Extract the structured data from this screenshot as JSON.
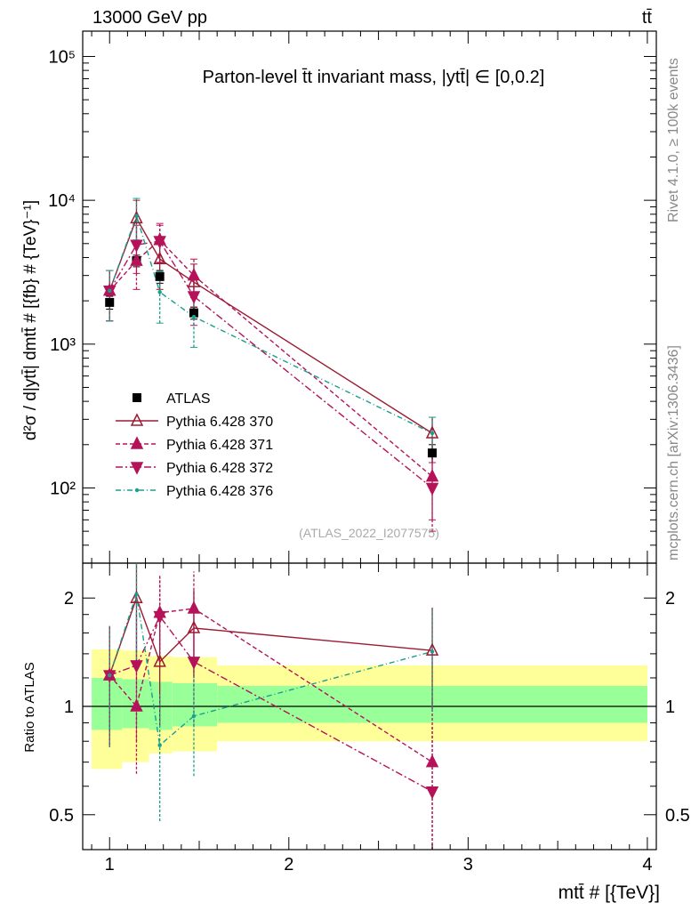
{
  "header": {
    "energy_label": "13000 GeV pp",
    "process_label": "tt̄",
    "side_rivet": "Rivet 4.1.0, ≥ 100k events",
    "side_mcplots": "mcplots.cern.ch [arXiv:1306.3436]"
  },
  "colors": {
    "atlas": "#000000",
    "p370": "#9b1b30",
    "p371": "#b5125a",
    "p372": "#b5125a",
    "p376": "#1a9f8f",
    "band_yellow": "#ffff99",
    "band_green": "#99ff99"
  },
  "chart_data": [
    {
      "type": "scatter",
      "title": "Parton-level t̄t invariant mass, |ytt̄| ∈ [0,0.2]",
      "xlabel": "mtt̄ # [{TeV}]",
      "ylabel": "d²σ / d|ytt̄| dmtt̄ # [{fb} # {TeV}⁻¹]",
      "yscale": "log",
      "xlim": [
        0.85,
        4.05
      ],
      "ylim": [
        30,
        150000
      ],
      "x_ticks": [
        "1",
        "2",
        "3",
        "4"
      ],
      "y_ticks": [
        "10²",
        "10³",
        "10⁴",
        "10⁵"
      ],
      "legend_position": "middle-left",
      "watermark": "(ATLAS_2022_I2077575)",
      "bin_edges": [
        0.9,
        1.07,
        1.22,
        1.35,
        1.6,
        4.0
      ],
      "series": [
        {
          "name": "ATLAS",
          "marker": "square",
          "x": [
            1.0,
            1.15,
            1.28,
            1.47,
            2.8
          ],
          "y": [
            1950,
            3800,
            2950,
            1650,
            175
          ],
          "yerr": [
            200,
            350,
            300,
            160,
            25
          ]
        },
        {
          "name": "Pythia 6.428 370",
          "marker": "triangle-up-open",
          "line": "solid",
          "x": [
            1.0,
            1.15,
            1.28,
            1.47,
            2.8
          ],
          "y": [
            2350,
            7500,
            3900,
            2700,
            240
          ],
          "yerr": [
            900,
            2500,
            1500,
            900,
            70
          ]
        },
        {
          "name": "Pythia 6.428 371",
          "marker": "triangle-up",
          "line": "dashed",
          "x": [
            1.0,
            1.15,
            1.28,
            1.47,
            2.8
          ],
          "y": [
            2350,
            3800,
            5300,
            3000,
            120
          ],
          "yerr": [
            900,
            1400,
            1600,
            900,
            60
          ]
        },
        {
          "name": "Pythia 6.428 372",
          "marker": "triangle-down",
          "line": "dashdot",
          "x": [
            1.0,
            1.15,
            1.28,
            1.47,
            2.8
          ],
          "y": [
            2350,
            4900,
            5200,
            2150,
            100
          ],
          "yerr": [
            900,
            1800,
            1500,
            800,
            50
          ]
        },
        {
          "name": "Pythia 6.428 376",
          "marker": "dot",
          "line": "dashdotted",
          "x": [
            1.0,
            1.15,
            1.28,
            1.47,
            2.8
          ],
          "y": [
            2350,
            7800,
            2300,
            1550,
            240
          ],
          "yerr": [
            900,
            2500,
            900,
            600,
            70
          ]
        }
      ]
    },
    {
      "type": "scatter",
      "title": "",
      "xlabel": "",
      "ylabel": "Ratio to ATLAS",
      "yscale": "log",
      "xlim": [
        0.85,
        4.05
      ],
      "ylim": [
        0.4,
        2.5
      ],
      "y_ticks": [
        "0.5",
        "1",
        "2"
      ],
      "reference": 1,
      "bands": {
        "bin_edges": [
          0.9,
          1.07,
          1.22,
          1.35,
          1.6,
          4.0
        ],
        "yellow_lo": [
          0.67,
          0.7,
          0.74,
          0.75,
          0.8
        ],
        "yellow_hi": [
          1.44,
          1.43,
          1.38,
          1.37,
          1.3
        ],
        "green_lo": [
          0.86,
          0.87,
          0.86,
          0.88,
          0.9
        ],
        "green_hi": [
          1.2,
          1.19,
          1.17,
          1.16,
          1.14
        ]
      },
      "series": [
        {
          "name": "Pythia 6.428 370",
          "x": [
            1.0,
            1.15,
            1.28,
            1.47,
            2.8
          ],
          "y": [
            1.22,
            2.0,
            1.33,
            1.65,
            1.43
          ],
          "err": [
            0.45,
            0.7,
            0.45,
            0.45,
            0.45
          ]
        },
        {
          "name": "Pythia 6.428 371",
          "x": [
            1.0,
            1.15,
            1.28,
            1.47,
            2.8
          ],
          "y": [
            1.22,
            1.0,
            1.82,
            1.87,
            0.7
          ],
          "err": [
            0.45,
            0.35,
            0.5,
            0.5,
            0.35
          ]
        },
        {
          "name": "Pythia 6.428 372",
          "x": [
            1.0,
            1.15,
            1.28,
            1.47,
            2.8
          ],
          "y": [
            1.22,
            1.3,
            1.78,
            1.33,
            0.58
          ],
          "err": [
            0.45,
            0.5,
            0.5,
            0.45,
            0.3
          ]
        },
        {
          "name": "Pythia 6.428 376",
          "x": [
            1.0,
            1.15,
            1.28,
            1.47,
            2.8
          ],
          "y": [
            1.22,
            2.05,
            0.78,
            0.94,
            1.42
          ],
          "err": [
            0.45,
            0.7,
            0.3,
            0.3,
            0.45
          ]
        }
      ]
    }
  ]
}
